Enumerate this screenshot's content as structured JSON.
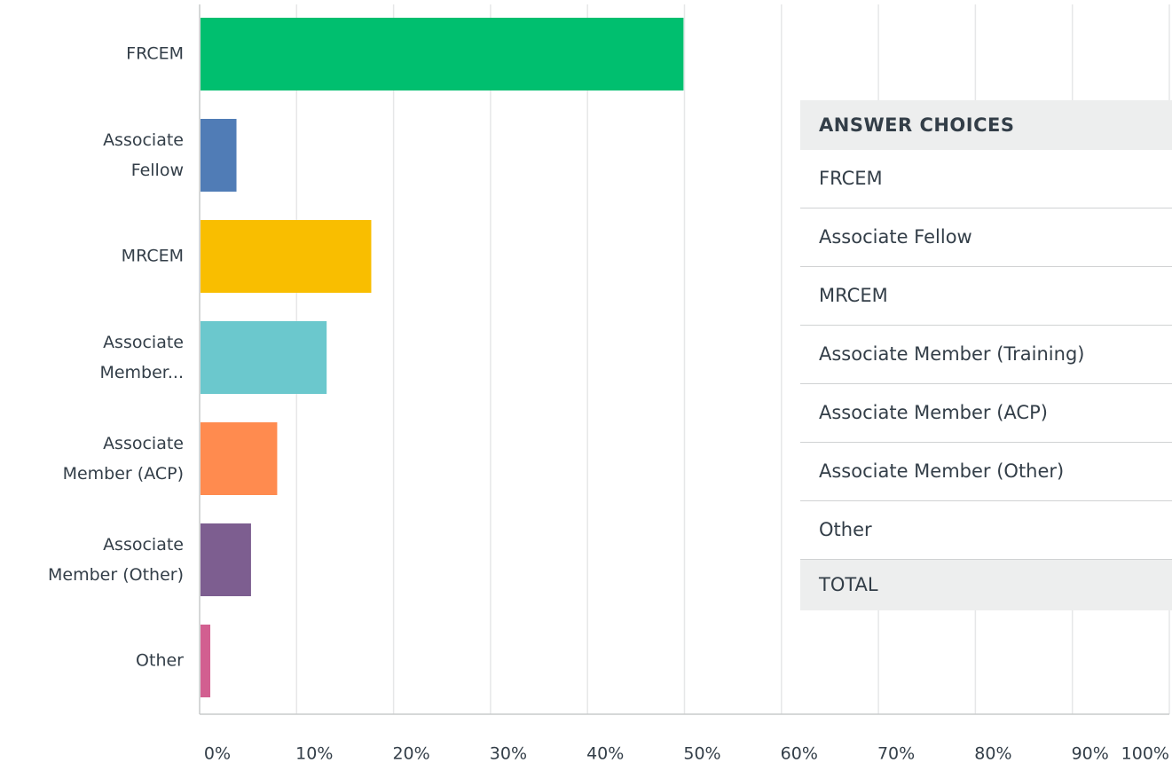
{
  "chart_data": {
    "type": "bar",
    "orientation": "horizontal",
    "categories": [
      "FRCEM",
      "Associate Fellow",
      "MRCEM",
      "Associate Member...",
      "Associate Member (ACP)",
      "Associate Member (Other)",
      "Other"
    ],
    "values": [
      49.9,
      3.8,
      17.7,
      13.1,
      8.0,
      5.3,
      1.1
    ],
    "colors": [
      "#00bf6f",
      "#507cb6",
      "#f9be00",
      "#6bc8cd",
      "#ff8b4f",
      "#7d5e90",
      "#d25f90"
    ],
    "xlim": [
      0,
      100
    ],
    "xticks": [
      {
        "value": 0,
        "label": "0%"
      },
      {
        "value": 10,
        "label": "10%"
      },
      {
        "value": 20,
        "label": "20%"
      },
      {
        "value": 30,
        "label": "30%"
      },
      {
        "value": 40,
        "label": "40%"
      },
      {
        "value": 50,
        "label": "50%"
      },
      {
        "value": 60,
        "label": "60%"
      },
      {
        "value": 70,
        "label": "70%"
      },
      {
        "value": 80,
        "label": "80%"
      },
      {
        "value": 90,
        "label": "90%"
      },
      {
        "value": 100,
        "label": "100%"
      }
    ],
    "grid": true
  },
  "table": {
    "header": "ANSWER CHOICES",
    "rows": [
      "FRCEM",
      "Associate Fellow",
      "MRCEM",
      "Associate Member (Training)",
      "Associate Member (ACP)",
      "Associate Member (Other)",
      "Other"
    ],
    "total": "TOTAL"
  }
}
